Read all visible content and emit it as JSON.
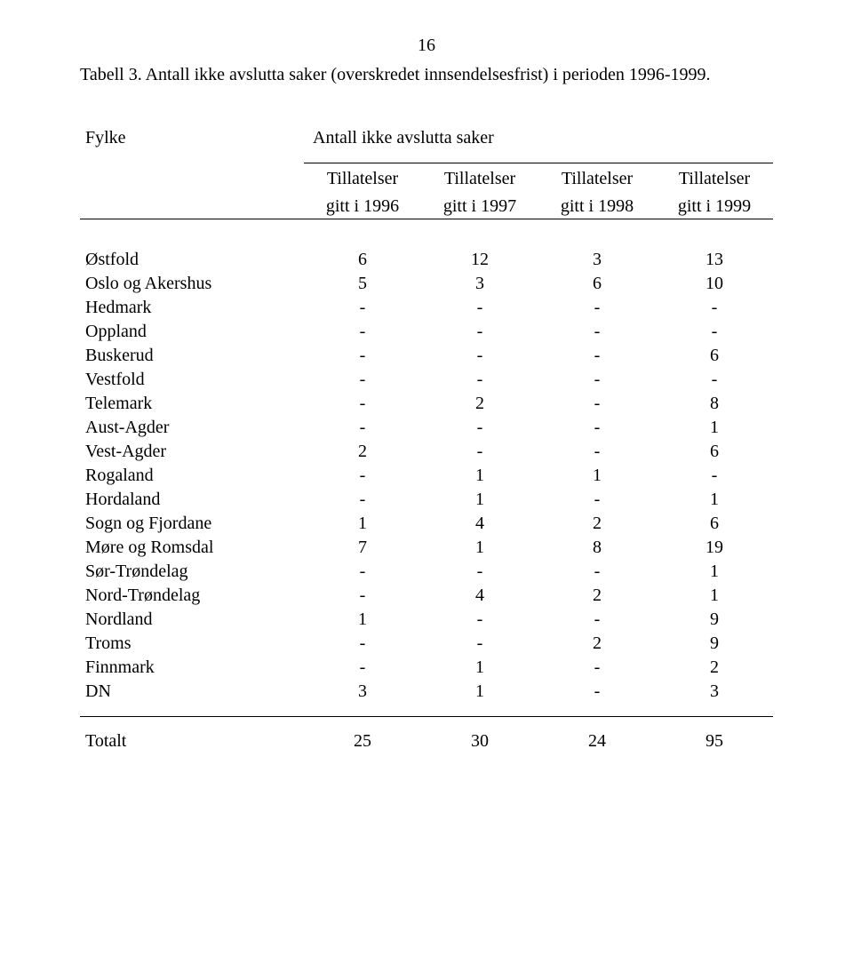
{
  "page_number": "16",
  "caption": "Tabell 3. Antall ikke avslutta saker (overskredet innsendelsesfrist) i perioden 1996-1999.",
  "header": {
    "fylke_label": "Fylke",
    "group_label": "Antall ikke avslutta saker",
    "cols_line1": [
      "Tillatelser",
      "Tillatelser",
      "Tillatelser",
      "Tillatelser"
    ],
    "cols_line2": [
      "gitt i 1996",
      "gitt i 1997",
      "gitt i 1998",
      "gitt i 1999"
    ]
  },
  "rows": [
    {
      "label": "Østfold",
      "v": [
        "6",
        "12",
        "3",
        "13"
      ]
    },
    {
      "label": "Oslo og Akershus",
      "v": [
        "5",
        "3",
        "6",
        "10"
      ]
    },
    {
      "label": "Hedmark",
      "v": [
        "-",
        "-",
        "-",
        "-"
      ]
    },
    {
      "label": "Oppland",
      "v": [
        "-",
        "-",
        "-",
        "-"
      ]
    },
    {
      "label": "Buskerud",
      "v": [
        "-",
        "-",
        "-",
        "6"
      ]
    },
    {
      "label": "Vestfold",
      "v": [
        "-",
        "-",
        "-",
        "-"
      ]
    },
    {
      "label": "Telemark",
      "v": [
        "-",
        "2",
        "-",
        "8"
      ]
    },
    {
      "label": "Aust-Agder",
      "v": [
        "-",
        "-",
        "-",
        "1"
      ]
    },
    {
      "label": "Vest-Agder",
      "v": [
        "2",
        "-",
        "-",
        "6"
      ]
    },
    {
      "label": "Rogaland",
      "v": [
        "-",
        "1",
        "1",
        "-"
      ]
    },
    {
      "label": "Hordaland",
      "v": [
        "-",
        "1",
        "-",
        "1"
      ]
    },
    {
      "label": "Sogn og Fjordane",
      "v": [
        "1",
        "4",
        "2",
        "6"
      ]
    },
    {
      "label": "Møre og Romsdal",
      "v": [
        "7",
        "1",
        "8",
        "19"
      ]
    },
    {
      "label": "Sør-Trøndelag",
      "v": [
        "-",
        "-",
        "-",
        "1"
      ]
    },
    {
      "label": "Nord-Trøndelag",
      "v": [
        " -",
        "4",
        "2",
        "1"
      ]
    },
    {
      "label": "Nordland",
      "v": [
        "1",
        "-",
        "-",
        "9"
      ]
    },
    {
      "label": "Troms",
      "v": [
        "-",
        "-",
        "2",
        "9"
      ]
    },
    {
      "label": "Finnmark",
      "v": [
        "-",
        "1",
        "-",
        "2"
      ]
    },
    {
      "label": "DN",
      "v": [
        "3",
        "1",
        "-",
        "3"
      ]
    }
  ],
  "total": {
    "label": "Totalt",
    "v": [
      "25",
      "30",
      "24",
      "95"
    ]
  },
  "style": {
    "font_family": "Times New Roman",
    "font_size_pt": 15,
    "text_color": "#000000",
    "background_color": "#ffffff",
    "rule_color": "#000000",
    "col_count": 4
  }
}
